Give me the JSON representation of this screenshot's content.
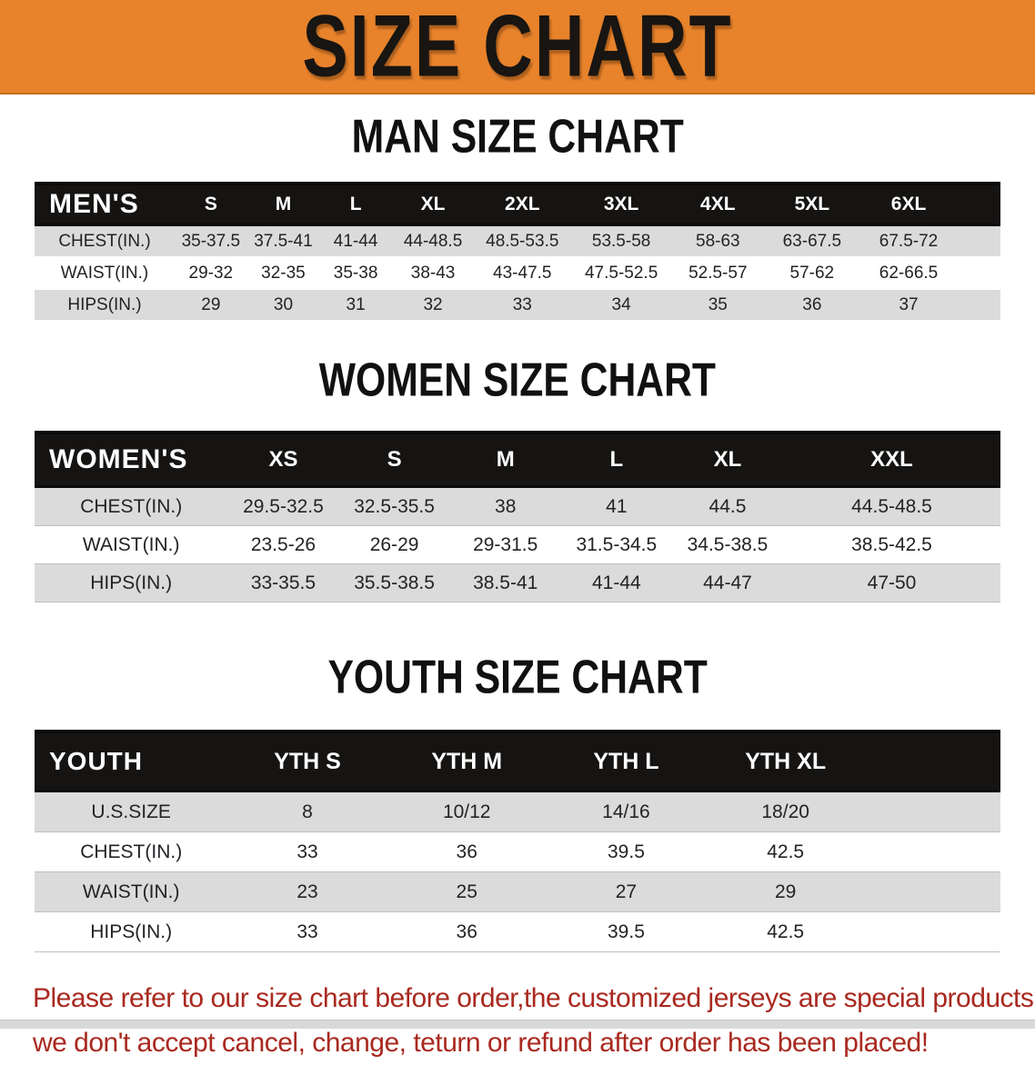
{
  "banner": {
    "title": "SIZE CHART",
    "bg_color": "#E8832C",
    "text_color": "#181512"
  },
  "men": {
    "title": "MAN SIZE CHART",
    "header_label": "MEN'S",
    "columns": [
      "S",
      "M",
      "L",
      "XL",
      "2XL",
      "3XL",
      "4XL",
      "5XL",
      "6XL"
    ],
    "rows": [
      {
        "label": "CHEST(IN.)",
        "values": [
          "35-37.5",
          "37.5-41",
          "41-44",
          "44-48.5",
          "48.5-53.5",
          "53.5-58",
          "58-63",
          "63-67.5",
          "67.5-72"
        ]
      },
      {
        "label": "WAIST(IN.)",
        "values": [
          "29-32",
          "32-35",
          "35-38",
          "38-43",
          "43-47.5",
          "47.5-52.5",
          "52.5-57",
          "57-62",
          "62-66.5"
        ]
      },
      {
        "label": "HIPS(IN.)",
        "values": [
          "29",
          "30",
          "31",
          "32",
          "33",
          "34",
          "35",
          "36",
          "37"
        ]
      }
    ]
  },
  "women": {
    "title": "WOMEN SIZE CHART",
    "header_label": "WOMEN'S",
    "columns": [
      "XS",
      "S",
      "M",
      "L",
      "XL",
      "XXL"
    ],
    "rows": [
      {
        "label": "CHEST(IN.)",
        "values": [
          "29.5-32.5",
          "32.5-35.5",
          "38",
          "41",
          "44.5",
          "44.5-48.5"
        ]
      },
      {
        "label": "WAIST(IN.)",
        "values": [
          "23.5-26",
          "26-29",
          "29-31.5",
          "31.5-34.5",
          "34.5-38.5",
          "38.5-42.5"
        ]
      },
      {
        "label": "HIPS(IN.)",
        "values": [
          "33-35.5",
          "35.5-38.5",
          "38.5-41",
          "41-44",
          "44-47",
          "47-50"
        ]
      }
    ]
  },
  "youth": {
    "title": "YOUTH SIZE CHART",
    "header_label": "YOUTH",
    "columns": [
      "YTH S",
      "YTH M",
      "YTH L",
      "YTH XL"
    ],
    "rows": [
      {
        "label": "U.S.SIZE",
        "values": [
          "8",
          "10/12",
          "14/16",
          "18/20"
        ]
      },
      {
        "label": "CHEST(IN.)",
        "values": [
          "33",
          "36",
          "39.5",
          "42.5"
        ]
      },
      {
        "label": "WAIST(IN.)",
        "values": [
          "23",
          "25",
          "27",
          "29"
        ]
      },
      {
        "label": "HIPS(IN.)",
        "values": [
          "33",
          "36",
          "39.5",
          "42.5"
        ]
      }
    ]
  },
  "disclaimer": {
    "line1": "Please refer to our size chart before order,the customized jerseys are special products,",
    "line2": "we don't accept cancel, change, teturn or refund after order has been placed!",
    "color": "#A9291F"
  },
  "colors": {
    "header_bar": "#161412",
    "row_gray": "#DBDBDB"
  }
}
